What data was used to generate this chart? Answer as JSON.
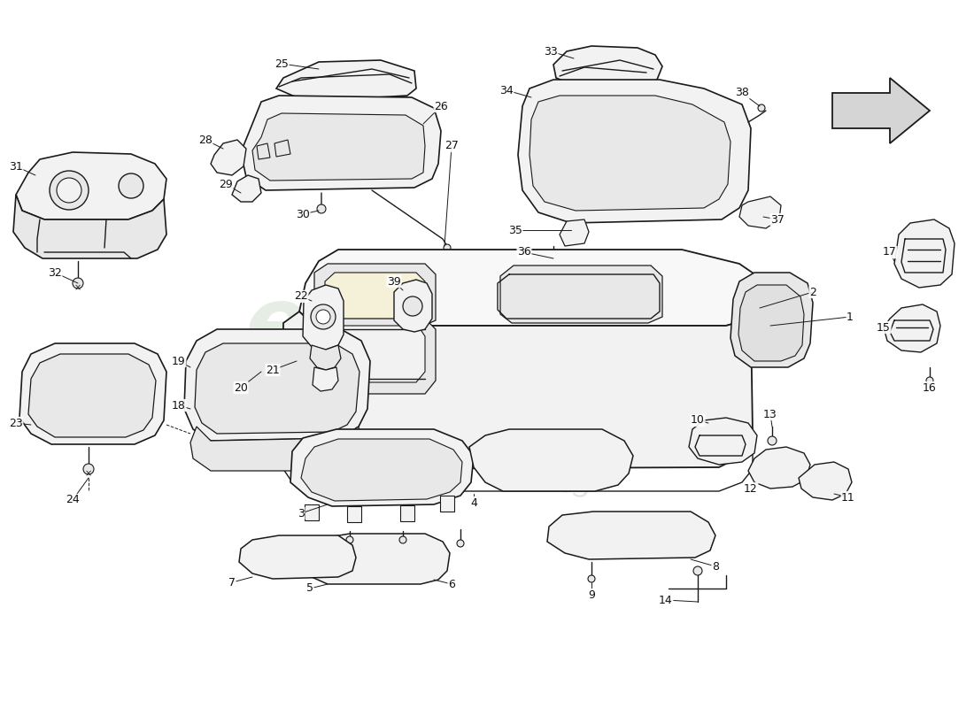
{
  "bg_color": "#ffffff",
  "lc": "#1a1a1a",
  "lw": 1.0,
  "fill_light": "#f2f2f2",
  "fill_mid": "#e8e8e8",
  "fill_dark": "#d0d0d0",
  "fill_yellow": "#f5f0d8",
  "wm_color": "#c8d8c5",
  "wm_color2": "#c5d5c0",
  "arrow_fill": "#d5d5d5",
  "label_color": "#111111",
  "label_size": 9
}
